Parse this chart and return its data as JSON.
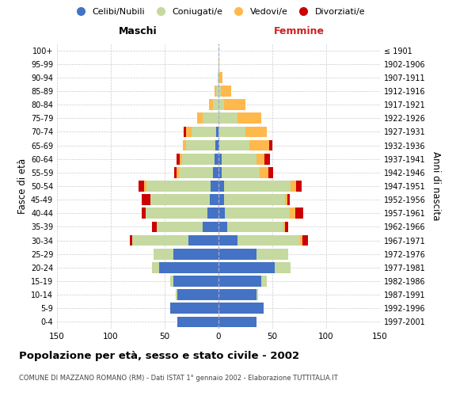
{
  "age_groups": [
    "0-4",
    "5-9",
    "10-14",
    "15-19",
    "20-24",
    "25-29",
    "30-34",
    "35-39",
    "40-44",
    "45-49",
    "50-54",
    "55-59",
    "60-64",
    "65-69",
    "70-74",
    "75-79",
    "80-84",
    "85-89",
    "90-94",
    "95-99",
    "100+"
  ],
  "birth_years": [
    "1997-2001",
    "1992-1996",
    "1987-1991",
    "1982-1986",
    "1977-1981",
    "1972-1976",
    "1967-1971",
    "1962-1966",
    "1957-1961",
    "1952-1956",
    "1947-1951",
    "1942-1946",
    "1937-1941",
    "1932-1936",
    "1927-1931",
    "1922-1926",
    "1917-1921",
    "1912-1916",
    "1907-1911",
    "1902-1906",
    "≤ 1901"
  ],
  "male_celibe": [
    38,
    45,
    38,
    42,
    55,
    42,
    28,
    15,
    10,
    8,
    7,
    5,
    4,
    3,
    2,
    0,
    0,
    0,
    0,
    0,
    0
  ],
  "male_coniugato": [
    0,
    0,
    2,
    3,
    7,
    18,
    52,
    42,
    58,
    55,
    60,
    32,
    30,
    27,
    23,
    15,
    5,
    2,
    1,
    0,
    0
  ],
  "male_vedovo": [
    0,
    0,
    0,
    0,
    0,
    0,
    0,
    0,
    0,
    0,
    2,
    2,
    2,
    3,
    5,
    5,
    4,
    2,
    0,
    0,
    0
  ],
  "male_divorziato": [
    0,
    0,
    0,
    0,
    0,
    0,
    2,
    5,
    3,
    8,
    5,
    2,
    3,
    0,
    2,
    0,
    0,
    0,
    0,
    0,
    0
  ],
  "female_celibe": [
    35,
    42,
    35,
    40,
    52,
    35,
    18,
    8,
    6,
    5,
    5,
    3,
    3,
    1,
    0,
    0,
    0,
    0,
    0,
    0,
    0
  ],
  "female_coniugata": [
    0,
    0,
    2,
    5,
    15,
    30,
    58,
    52,
    60,
    57,
    62,
    35,
    32,
    28,
    25,
    18,
    5,
    2,
    1,
    0,
    0
  ],
  "female_vedova": [
    0,
    0,
    0,
    0,
    0,
    0,
    2,
    2,
    5,
    2,
    5,
    8,
    8,
    18,
    20,
    22,
    20,
    10,
    3,
    1,
    0
  ],
  "female_divorziata": [
    0,
    0,
    0,
    0,
    0,
    0,
    5,
    3,
    8,
    2,
    5,
    5,
    5,
    3,
    0,
    0,
    0,
    0,
    0,
    0,
    0
  ],
  "colors": {
    "celibe": "#4472C4",
    "coniugato": "#C5D9A0",
    "vedovo": "#FFB84C",
    "divorziato": "#CC0000"
  },
  "title": "Popolazione per età, sesso e stato civile - 2002",
  "subtitle": "COMUNE DI MAZZANO ROMANO (RM) - Dati ISTAT 1° gennaio 2002 - Elaborazione TUTTITALIA.IT",
  "xlabel_left": "Maschi",
  "xlabel_right": "Femmine",
  "ylabel_left": "Fasce di età",
  "ylabel_right": "Anni di nascita",
  "xlim": 150,
  "legend_labels": [
    "Celibi/Nubili",
    "Coniugati/e",
    "Vedovi/e",
    "Divorziati/e"
  ],
  "bg_color": "#FFFFFF",
  "grid_color": "#CCCCCC"
}
